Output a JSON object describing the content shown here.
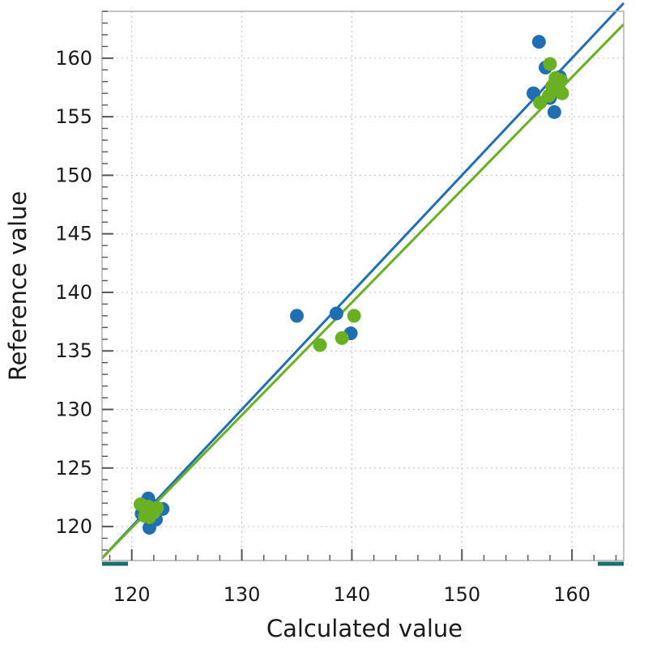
{
  "chart_data": {
    "type": "scatter",
    "xlabel": "Calculated value",
    "ylabel": "Reference value",
    "xlim": [
      117.3,
      164.7
    ],
    "ylim": [
      117.1,
      164.0
    ],
    "x_ticks": [
      120,
      130,
      140,
      150,
      160
    ],
    "y_ticks": [
      120,
      125,
      130,
      135,
      140,
      145,
      150,
      155,
      160
    ],
    "grid": true,
    "series": [
      {
        "color": "#1f6fb2",
        "points": [
          [
            121.5,
            122.4
          ],
          [
            120.9,
            121.1
          ],
          [
            121.6,
            119.9
          ],
          [
            122.2,
            120.6
          ],
          [
            122.8,
            121.5
          ],
          [
            121.9,
            121.8
          ],
          [
            121.2,
            122.0
          ],
          [
            135.0,
            138.0
          ],
          [
            138.6,
            138.2
          ],
          [
            139.9,
            136.5
          ],
          [
            157.0,
            161.4
          ],
          [
            156.5,
            157.0
          ],
          [
            157.6,
            159.2
          ],
          [
            158.4,
            155.4
          ],
          [
            158.0,
            156.6
          ],
          [
            158.9,
            158.4
          ],
          [
            158.5,
            157.8
          ]
        ],
        "fit": [
          [
            117.3,
            117.3
          ],
          [
            164.7,
            164.7
          ]
        ]
      },
      {
        "color": "#6ab023",
        "points": [
          [
            120.8,
            121.9
          ],
          [
            121.3,
            121.4
          ],
          [
            121.6,
            120.8
          ],
          [
            122.0,
            121.2
          ],
          [
            121.2,
            120.9
          ],
          [
            122.3,
            121.6
          ],
          [
            121.5,
            121.7
          ],
          [
            137.1,
            135.5
          ],
          [
            139.1,
            136.1
          ],
          [
            140.2,
            138.0
          ],
          [
            157.1,
            156.2
          ],
          [
            158.0,
            159.5
          ],
          [
            158.5,
            158.3
          ],
          [
            159.1,
            157.0
          ],
          [
            158.8,
            157.4
          ],
          [
            157.9,
            156.8
          ],
          [
            158.2,
            157.6
          ],
          [
            159.0,
            158.1
          ]
        ],
        "fit": [
          [
            117.3,
            117.3
          ],
          [
            164.7,
            162.9
          ]
        ]
      }
    ],
    "axis_marker_color": "#1a6e6e"
  }
}
